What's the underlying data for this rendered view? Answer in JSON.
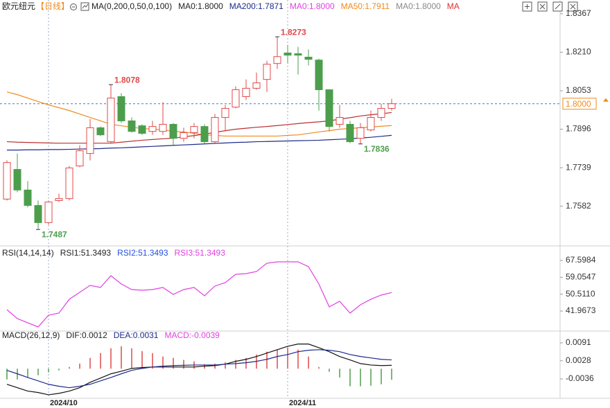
{
  "chart_data": [
    {
      "type": "candlestick",
      "title": "欧元纽元",
      "subtitle": "【日线】",
      "legend_texts": [
        {
          "text": "MA(0,200,0,50,0,100)",
          "color": "#222222"
        },
        {
          "text": "MA0:1.8000",
          "color": "#222222"
        },
        {
          "text": "MA200:1.7871",
          "color": "#1a2a8a"
        },
        {
          "text": "MA0:1.8000",
          "color": "#e040e0"
        },
        {
          "text": "MA50:1.7911",
          "color": "#f08a1c"
        },
        {
          "text": "MA0:1.8000",
          "color": "#888888"
        },
        {
          "text": "MA",
          "color": "#e03030"
        }
      ],
      "x": [
        null,
        null,
        null,
        null,
        "2024/10",
        null,
        null,
        null,
        null,
        null,
        null,
        null,
        null,
        null,
        null,
        null,
        null,
        null,
        null,
        null,
        null,
        null,
        null,
        null,
        null,
        null,
        null,
        "2024/11",
        null,
        null,
        null,
        null,
        null,
        null,
        null,
        null,
        null,
        null
      ],
      "open": [
        1.7611,
        1.7732,
        1.7648,
        1.7585,
        1.7515,
        1.7605,
        1.7613,
        1.7746,
        1.7797,
        1.7902,
        1.7845,
        1.8029,
        1.793,
        1.791,
        1.7887,
        1.7887,
        1.7916,
        1.7859,
        1.7882,
        1.7907,
        1.7845,
        1.7944,
        1.7986,
        1.8029,
        1.8063,
        1.8099,
        1.8164,
        1.8207,
        1.8204,
        1.819,
        1.8178,
        1.8057,
        1.7916,
        1.7916,
        1.7859,
        1.7893,
        1.7944,
        1.7981
      ],
      "high": [
        1.7769,
        1.7797,
        1.7684,
        1.7605,
        1.7605,
        1.7633,
        1.7746,
        1.7831,
        1.7938,
        1.7907,
        1.8078,
        1.8043,
        1.7944,
        1.7916,
        1.793,
        1.8006,
        1.7921,
        1.7902,
        1.7921,
        1.7916,
        1.7958,
        1.7995,
        1.8071,
        1.8099,
        1.8127,
        1.8175,
        1.8273,
        1.824,
        1.8232,
        1.8221,
        1.8184,
        1.8057,
        1.7995,
        1.793,
        1.7921,
        1.7972,
        1.8,
        1.802
      ],
      "low": [
        1.7605,
        1.7639,
        1.7577,
        1.7487,
        1.7506,
        1.7599,
        1.7605,
        1.7741,
        1.7769,
        1.7868,
        1.7839,
        1.7921,
        1.7882,
        1.7873,
        1.7873,
        1.7873,
        1.7831,
        1.7845,
        1.7859,
        1.7837,
        1.7839,
        1.7887,
        1.7981,
        1.8015,
        1.8057,
        1.8048,
        1.8142,
        1.8164,
        1.8119,
        1.8156,
        1.7972,
        1.7887,
        1.7902,
        1.7839,
        1.7836,
        1.7887,
        1.793,
        1.7972
      ],
      "close": [
        1.776,
        1.7648,
        1.7585,
        1.7515,
        1.7599,
        1.7613,
        1.7738,
        1.7808,
        1.7902,
        1.7873,
        1.8023,
        1.793,
        1.7887,
        1.7879,
        1.7907,
        1.7916,
        1.7859,
        1.7882,
        1.7907,
        1.7845,
        1.7944,
        1.7981,
        1.8057,
        1.8063,
        1.8085,
        1.8161,
        1.8192,
        1.8198,
        1.8198,
        1.8181,
        1.8057,
        1.7907,
        1.7944,
        1.7845,
        1.7902,
        1.7944,
        1.7981,
        1.8
      ],
      "up_color": "#e04848",
      "down_color": "#4c9e4c",
      "high_labels": [
        10,
        26
      ],
      "low_labels": [
        3,
        34
      ],
      "series": [
        {
          "color": "#1a2a8a",
          "values": [
            1.7811,
            1.7811,
            1.7812,
            1.7812,
            1.7813,
            1.7813,
            1.7814,
            1.7815,
            1.7816,
            1.7817,
            1.7819,
            1.782,
            1.7822,
            1.7824,
            1.7826,
            1.7828,
            1.783,
            1.7832,
            1.7834,
            1.7836,
            1.7838,
            1.784,
            1.7842,
            1.7843,
            1.7845,
            1.7846,
            1.7847,
            1.7848,
            1.7849,
            1.785,
            1.7851,
            1.7853,
            1.7855,
            1.7857,
            1.786,
            1.7863,
            1.7867,
            1.7871
          ]
        },
        {
          "color": "#f08a1c",
          "values": [
            1.8048,
            1.8037,
            1.8023,
            1.8009,
            1.7995,
            1.7984,
            1.7972,
            1.7958,
            1.7944,
            1.793,
            1.7916,
            1.791,
            1.7904,
            1.7899,
            1.7896,
            1.7893,
            1.7887,
            1.7885,
            1.7879,
            1.7873,
            1.7871,
            1.7868,
            1.7868,
            1.7868,
            1.7868,
            1.7868,
            1.7868,
            1.7871,
            1.7873,
            1.7879,
            1.7885,
            1.789,
            1.7896,
            1.7899,
            1.7902,
            1.7905,
            1.7908,
            1.7911
          ]
        },
        {
          "color": "#b83030",
          "values": [
            1.7845,
            1.7843,
            1.7842,
            1.7841,
            1.784,
            1.7839,
            1.7839,
            1.7839,
            1.7839,
            1.7839,
            1.7839,
            1.7843,
            1.7847,
            1.7851,
            1.7854,
            1.7857,
            1.7859,
            1.7865,
            1.787,
            1.7876,
            1.7883,
            1.789,
            1.7896,
            1.79,
            1.7904,
            1.7907,
            1.7911,
            1.7915,
            1.7919,
            1.7923,
            1.7926,
            1.793,
            1.7937,
            1.7943,
            1.795,
            1.7955,
            1.7959,
            1.7964
          ]
        }
      ],
      "last_price": {
        "value": 1.8,
        "label": "1.8000"
      },
      "last_price_color": "#f08a1c",
      "ylim": [
        1.742,
        1.8423
      ],
      "yticks": [
        1.8367,
        {
          "value": 1.821,
          "label": "1.8210"
        },
        1.8053,
        1.7896,
        1.7739,
        1.7582
      ]
    },
    {
      "type": "line",
      "legend_texts": [
        {
          "text": "RSI(14,14,14)",
          "color": "#222222"
        },
        {
          "text": "RSI1:51.3493",
          "color": "#222222"
        },
        {
          "text": "RSI2:51.3493",
          "color": "#2050e0"
        },
        {
          "text": "RSI3:51.3493",
          "color": "#e040e0"
        }
      ],
      "series": [
        {
          "color": "#e040e0",
          "values": [
            42.67,
            38.11,
            36.0,
            33.89,
            39.86,
            40.91,
            47.94,
            51.45,
            54.96,
            53.91,
            59.87,
            55.66,
            52.85,
            52.5,
            52.85,
            53.91,
            50.39,
            52.85,
            53.91,
            49.69,
            54.61,
            56.36,
            60.58,
            60.93,
            61.98,
            66.19,
            66.9,
            66.9,
            66.9,
            64.44,
            55.66,
            44.07,
            46.88,
            40.91,
            45.13,
            47.94,
            50.04,
            51.35
          ]
        }
      ],
      "ylim": [
        31.78,
        73.92
      ],
      "yticks": [
        67.5984,
        59.0547,
        {
          "value": 50.511,
          "label": "50.5110"
        },
        41.9673
      ]
    },
    {
      "type": "macd",
      "legend_texts": [
        {
          "text": "MACD(26,12,9)",
          "color": "#222222"
        },
        {
          "text": "DIF:0.0012",
          "color": "#222222"
        },
        {
          "text": "DEA:0.0031",
          "color": "#1a2a8a"
        },
        {
          "text": "MACD:-0.0039",
          "color": "#e040e0"
        }
      ],
      "histogram": {
        "up_color": "#e04848",
        "down_color": "#4c9e4c",
        "values": [
          -0.0038,
          -0.0038,
          -0.0031,
          -0.0023,
          -0.0013,
          -0.0006,
          0.0006,
          0.0018,
          0.0038,
          0.0055,
          0.0072,
          0.0079,
          0.0072,
          0.0062,
          0.0055,
          0.0043,
          0.0038,
          0.0031,
          0.0026,
          0.0016,
          0.0018,
          0.0023,
          0.0031,
          0.0038,
          0.005,
          0.006,
          0.0067,
          0.0074,
          0.0067,
          0.0043,
          0.0006,
          -0.0011,
          -0.0031,
          -0.0062,
          -0.0062,
          -0.006,
          -0.0055,
          -0.0039
        ]
      },
      "series": [
        {
          "color": "#111111",
          "values": [
            -0.0055,
            -0.0067,
            -0.0079,
            -0.0084,
            -0.0092,
            -0.0087,
            -0.0079,
            -0.0067,
            -0.0048,
            -0.0033,
            -0.0018,
            -0.0009,
            0.0001,
            0.0004,
            0.0006,
            0.0006,
            0.0006,
            0.0006,
            0.0006,
            0.0009,
            0.0011,
            0.0016,
            0.0026,
            0.0033,
            0.0043,
            0.0055,
            0.0067,
            0.0079,
            0.0087,
            0.0087,
            0.0074,
            0.006,
            0.0043,
            0.0031,
            0.0018,
            0.0013,
            0.0011,
            0.0012
          ]
        },
        {
          "color": "#1a2a8a",
          "values": [
            -0.0006,
            -0.0018,
            -0.0031,
            -0.0043,
            -0.0055,
            -0.0062,
            -0.0067,
            -0.0062,
            -0.0055,
            -0.0043,
            -0.0031,
            -0.0018,
            -0.0006,
            0.0001,
            0.0006,
            0.0009,
            0.0011,
            0.0012,
            0.0013,
            0.0013,
            0.0013,
            0.0016,
            0.0018,
            0.0021,
            0.0026,
            0.0033,
            0.0043,
            0.005,
            0.006,
            0.0065,
            0.0067,
            0.0065,
            0.006,
            0.005,
            0.0043,
            0.0038,
            0.0033,
            0.0031
          ]
        }
      ],
      "ylim": [
        -0.01044,
        0.01325
      ],
      "yticks": [
        0.0091,
        0.0028,
        -0.0036
      ]
    }
  ]
}
